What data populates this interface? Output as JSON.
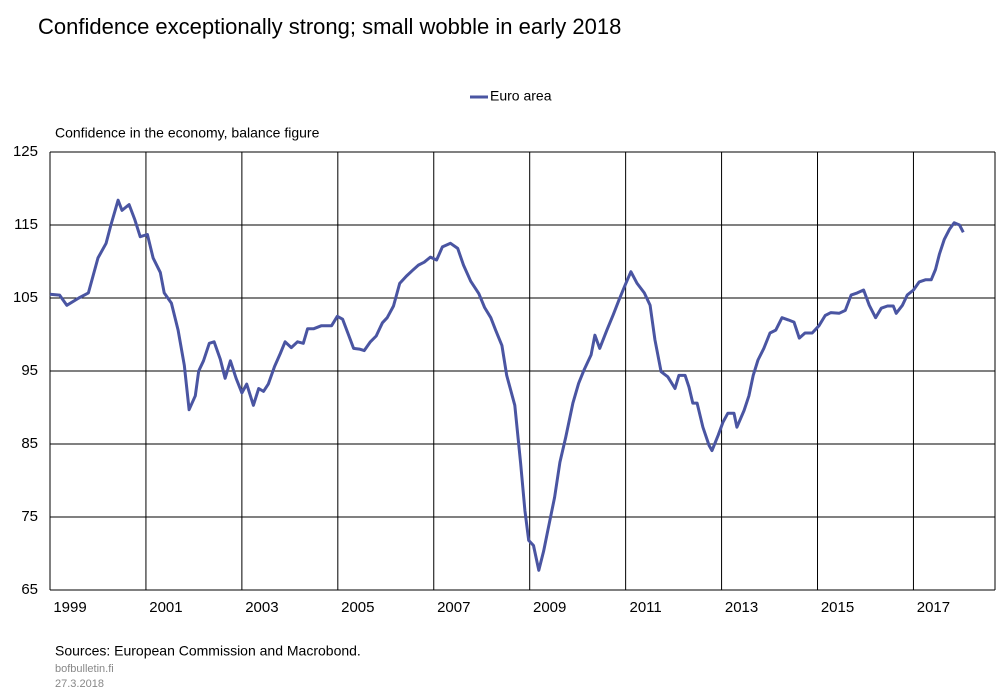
{
  "chart_data": {
    "type": "line",
    "title": "Confidence exceptionally strong; small wobble in early 2018",
    "y_label": "Confidence in the economy, balance figure",
    "source": "Sources: European Commission and Macrobond.",
    "site": "bofbulletin.fi",
    "date": "27.3.2018",
    "legend": "top-center",
    "grid": true,
    "xlim": [
      1999,
      2018.7
    ],
    "xticks": [
      1999,
      2001,
      2003,
      2005,
      2007,
      2009,
      2011,
      2013,
      2015,
      2017
    ],
    "ylim": [
      65,
      125
    ],
    "yticks": [
      65,
      75,
      85,
      95,
      105,
      115,
      125
    ],
    "x": [
      1999.0,
      1999.2,
      1999.35,
      1999.6,
      1999.8,
      2000.0,
      2000.17,
      2000.27,
      2000.42,
      2000.5,
      2000.65,
      2000.77,
      2000.88,
      2001.03,
      2001.15,
      2001.3,
      2001.38,
      2001.53,
      2001.67,
      2001.8,
      2001.9,
      2002.03,
      2002.1,
      2002.2,
      2002.32,
      2002.42,
      2002.55,
      2002.65,
      2002.76,
      2002.88,
      2003.0,
      2003.1,
      2003.24,
      2003.35,
      2003.45,
      2003.55,
      2003.68,
      2003.8,
      2003.9,
      2004.03,
      2004.16,
      2004.28,
      2004.37,
      2004.5,
      2004.66,
      2004.87,
      2004.99,
      2005.1,
      2005.22,
      2005.33,
      2005.45,
      2005.55,
      2005.68,
      2005.8,
      2005.93,
      2006.03,
      2006.16,
      2006.29,
      2006.43,
      2006.56,
      2006.68,
      2006.8,
      2006.93,
      2007.06,
      2007.18,
      2007.35,
      2007.5,
      2007.62,
      2007.77,
      2007.94,
      2008.06,
      2008.19,
      2008.29,
      2008.42,
      2008.52,
      2008.69,
      2008.81,
      2008.9,
      2008.98,
      2009.08,
      2009.19,
      2009.29,
      2009.38,
      2009.52,
      2009.63,
      2009.75,
      2009.9,
      2010.02,
      2010.13,
      2010.28,
      2010.36,
      2010.46,
      2010.61,
      2010.74,
      2010.86,
      2010.99,
      2011.11,
      2011.24,
      2011.39,
      2011.51,
      2011.61,
      2011.74,
      2011.88,
      2012.03,
      2012.11,
      2012.24,
      2012.32,
      2012.4,
      2012.49,
      2012.61,
      2012.74,
      2012.8,
      2012.93,
      2013.03,
      2013.13,
      2013.26,
      2013.32,
      2013.47,
      2013.57,
      2013.66,
      2013.76,
      2013.88,
      2014.01,
      2014.13,
      2014.26,
      2014.39,
      2014.51,
      2014.62,
      2014.74,
      2014.89,
      2015.03,
      2015.16,
      2015.28,
      2015.45,
      2015.58,
      2015.7,
      2015.83,
      2015.96,
      2016.08,
      2016.21,
      2016.33,
      2016.46,
      2016.58,
      2016.64,
      2016.77,
      2016.87,
      2017.0,
      2017.12,
      2017.25,
      2017.37,
      2017.46,
      2017.54,
      2017.64,
      2017.75,
      2017.85,
      2017.96,
      2018.04
    ],
    "series": [
      {
        "name": "Euro area",
        "color": "#4a55a2",
        "values": [
          105.5,
          105.4,
          104,
          105,
          105.7,
          110.5,
          112.5,
          115,
          118.4,
          117,
          117.8,
          115.7,
          113.4,
          113.7,
          110.5,
          108.5,
          105.7,
          104.3,
          100.6,
          95.8,
          89.7,
          91.6,
          95,
          96.4,
          98.8,
          99,
          96.6,
          94,
          96.4,
          94,
          92,
          93.2,
          90.3,
          92.6,
          92.2,
          93.2,
          95.6,
          97.4,
          99,
          98.2,
          99,
          98.8,
          100.8,
          100.8,
          101.2,
          101.2,
          102.5,
          102.1,
          100,
          98.1,
          98,
          97.8,
          99,
          99.8,
          101.6,
          102.3,
          103.9,
          107,
          108,
          108.8,
          109.5,
          109.9,
          110.6,
          110.2,
          112,
          112.5,
          111.8,
          109.5,
          107.3,
          105.6,
          103.7,
          102.3,
          100.6,
          98.5,
          94.4,
          90.3,
          82.4,
          75.9,
          71.8,
          71.1,
          67.7,
          70.3,
          73.2,
          77.7,
          82.5,
          85.9,
          90.6,
          93.3,
          95.1,
          97.2,
          99.9,
          98.1,
          100.6,
          102.7,
          104.7,
          106.8,
          108.6,
          107,
          105.7,
          104,
          99.3,
          94.9,
          94.2,
          92.6,
          94.4,
          94.4,
          92.8,
          90.6,
          90.6,
          87.3,
          84.8,
          84.1,
          86.2,
          88,
          89.2,
          89.2,
          87.3,
          89.6,
          91.6,
          94.4,
          96.5,
          98.1,
          100.2,
          100.6,
          102.3,
          102,
          101.7,
          99.5,
          100.2,
          100.2,
          101.2,
          102.6,
          103,
          102.9,
          103.3,
          105.4,
          105.7,
          106.1,
          104,
          102.3,
          103.6,
          103.9,
          103.9,
          102.9,
          104,
          105.4,
          106.1,
          107.2,
          107.5,
          107.5,
          108.9,
          111,
          113,
          114.4,
          115.3,
          115,
          114
        ]
      }
    ]
  }
}
